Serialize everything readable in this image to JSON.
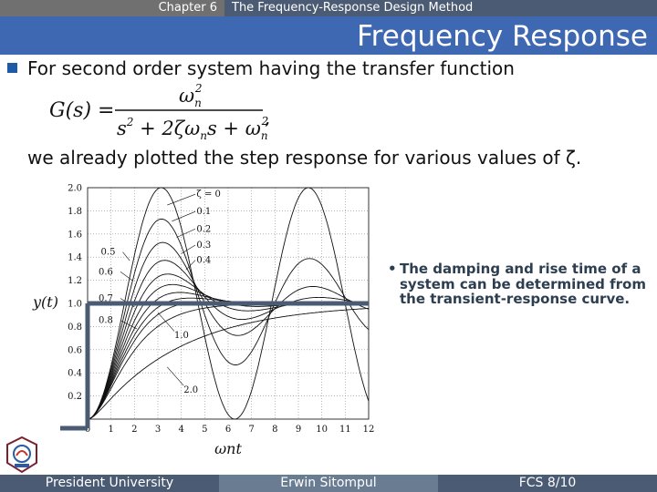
{
  "header": {
    "chapter": "Chapter 6",
    "chapter_title": "The Frequency-Response Design Method",
    "slide_title": "Frequency Response"
  },
  "body": {
    "bullet_text": "For second order system having the transfer function",
    "formula_lhs": "G(s) =",
    "formula_num": "ωn2",
    "formula_den": "s2 + 2ζωns + ωn2",
    "after_text": "we already plotted the step response for various values of ζ.",
    "note": "The damping and rise time of a system can be determined from the transient-response curve."
  },
  "footer": {
    "left": "President University",
    "center": "Erwin Sitompul",
    "right": "FCS 8/10"
  },
  "chart_data": {
    "type": "line",
    "xlabel": "ωnt",
    "ylabel": "y(t)",
    "xlim": [
      0,
      12
    ],
    "ylim": [
      0,
      2.0
    ],
    "xticks": [
      "0",
      "1",
      "2",
      "3",
      "4",
      "5",
      "6",
      "7",
      "8",
      "9",
      "10",
      "11",
      "12"
    ],
    "yticks": [
      "0.2",
      "0.4",
      "0.6",
      "0.8",
      "1.0",
      "1.2",
      "1.4",
      "1.6",
      "1.8",
      "2.0"
    ],
    "grid": true,
    "series_labels": [
      "ζ = 0",
      "0.1",
      "0.2",
      "0.3",
      "0.4",
      "0.5",
      "0.6",
      "0.7",
      "0.8",
      "1.0",
      "2.0"
    ],
    "zeta_values": [
      0,
      0.1,
      0.2,
      0.3,
      0.4,
      0.5,
      0.6,
      0.7,
      0.8,
      1.0,
      2.0
    ],
    "accent_color": "#4a5b73"
  }
}
